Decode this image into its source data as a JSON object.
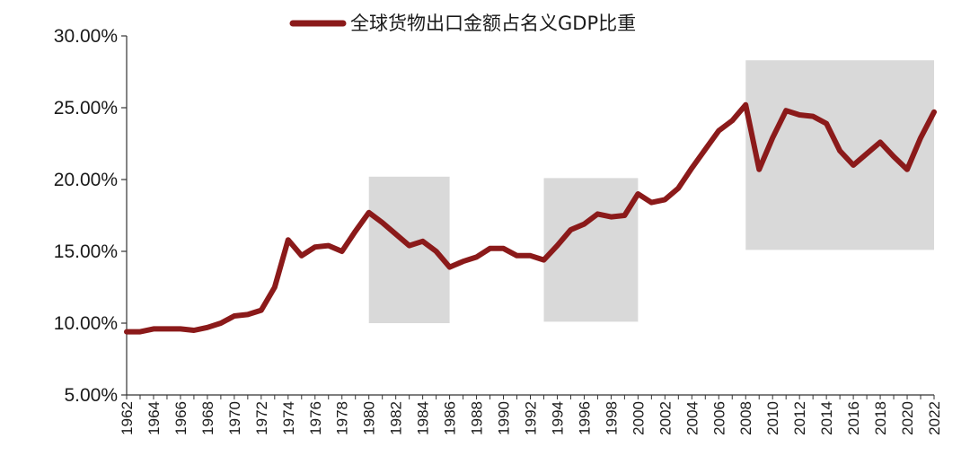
{
  "chart_data": {
    "type": "line",
    "title": "",
    "xlabel": "",
    "ylabel": "",
    "ylim": [
      5,
      30
    ],
    "y_ticks": [
      "5.00%",
      "10.00%",
      "15.00%",
      "20.00%",
      "25.00%",
      "30.00%"
    ],
    "y_tick_values": [
      5,
      10,
      15,
      20,
      25,
      30
    ],
    "x_tick_labels": [
      "1962",
      "1964",
      "1966",
      "1968",
      "1970",
      "1972",
      "1974",
      "1976",
      "1978",
      "1980",
      "1982",
      "1984",
      "1986",
      "1988",
      "1990",
      "1992",
      "1994",
      "1996",
      "1998",
      "2000",
      "2002",
      "2004",
      "2006",
      "2008",
      "2010",
      "2012",
      "2014",
      "2016",
      "2018",
      "2020",
      "2022"
    ],
    "grid": false,
    "legend_position": "top-center",
    "series": [
      {
        "name": "全球货物出口金额占名义GDP比重",
        "color": "#8b1a1a",
        "x": [
          1962,
          1963,
          1964,
          1965,
          1966,
          1967,
          1968,
          1969,
          1970,
          1971,
          1972,
          1973,
          1974,
          1975,
          1976,
          1977,
          1978,
          1979,
          1980,
          1981,
          1982,
          1983,
          1984,
          1985,
          1986,
          1987,
          1988,
          1989,
          1990,
          1991,
          1992,
          1993,
          1994,
          1995,
          1996,
          1997,
          1998,
          1999,
          2000,
          2001,
          2002,
          2003,
          2004,
          2005,
          2006,
          2007,
          2008,
          2009,
          2010,
          2011,
          2012,
          2013,
          2014,
          2015,
          2016,
          2017,
          2018,
          2019,
          2020,
          2021,
          2022
        ],
        "values": [
          9.4,
          9.4,
          9.6,
          9.6,
          9.6,
          9.5,
          9.7,
          10.0,
          10.5,
          10.6,
          10.9,
          12.5,
          15.8,
          14.7,
          15.3,
          15.4,
          15.0,
          16.4,
          17.7,
          17.0,
          16.2,
          15.4,
          15.7,
          15.0,
          13.9,
          14.3,
          14.6,
          15.2,
          15.2,
          14.7,
          14.7,
          14.4,
          15.4,
          16.5,
          16.9,
          17.6,
          17.4,
          17.5,
          19.0,
          18.4,
          18.6,
          19.4,
          20.8,
          22.1,
          23.4,
          24.1,
          25.2,
          20.7,
          22.9,
          24.8,
          24.5,
          24.4,
          23.9,
          22.0,
          21.0,
          21.8,
          22.6,
          21.6,
          20.7,
          22.9,
          24.7
        ]
      }
    ],
    "shaded_regions": [
      {
        "x_start": 1980,
        "x_end": 1986,
        "y_start": 10.0,
        "y_end": 20.2
      },
      {
        "x_start": 1993,
        "x_end": 2000,
        "y_start": 10.1,
        "y_end": 20.1
      },
      {
        "x_start": 2008,
        "x_end": 2022,
        "y_start": 15.1,
        "y_end": 28.3
      }
    ],
    "shade_color": "#d9d9d9"
  }
}
